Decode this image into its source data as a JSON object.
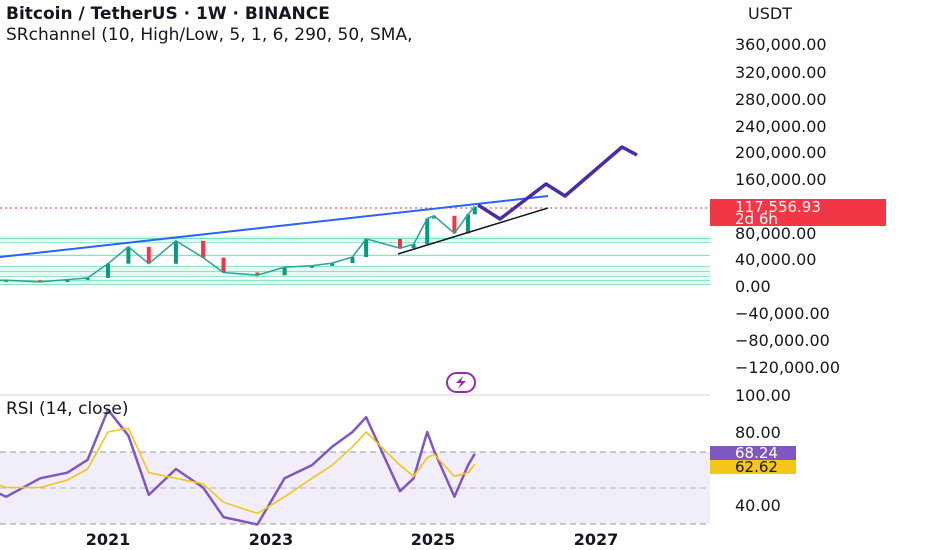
{
  "header": {
    "title": "Bitcoin / TetherUS · 1W · BINANCE",
    "indicator": "SRchannel (10, High/Low, 5, 1, 6, 290, 50, SMA,",
    "currency": "USDT"
  },
  "price_axis": {
    "ticks": [
      "360,000.00",
      "320,000.00",
      "280,000.00",
      "240,000.00",
      "200,000.00",
      "160,000.00",
      "80,000.00",
      "40,000.00",
      "0.00",
      "−40,000.00",
      "−80,000.00",
      "−120,000.00"
    ],
    "current_price": "117,556.93",
    "countdown": "2d 6h"
  },
  "rsi": {
    "label": "RSI (14, close)",
    "ticks": [
      "100.00",
      "80.00",
      "40.00"
    ],
    "value": "68.24",
    "ma_value": "62.62"
  },
  "time_axis": {
    "ticks": [
      "2021",
      "2023",
      "2025",
      "2027"
    ]
  },
  "colors": {
    "background": "#ffffff",
    "trendline": "#2962ff",
    "projection": "#4a2ca8",
    "price_tag": "#f23645",
    "rsi_line": "#7e57c2",
    "rsi_ma": "#f5c518",
    "rsi_fill": "#ede7f6",
    "channel": "#4dd9a0"
  },
  "chart_data": [
    {
      "type": "line",
      "title": "Bitcoin / TetherUS · 1W · BINANCE",
      "ylabel": "USDT",
      "x_range": [
        "2019-06",
        "2028-06"
      ],
      "ylim": [
        -145000,
        385000
      ],
      "series": [
        {
          "x": [
            "2019-06",
            "2019-10",
            "2020-03",
            "2020-07",
            "2020-10",
            "2021-01",
            "2021-04",
            "2021-07",
            "2021-11",
            "2022-03",
            "2022-06",
            "2022-11",
            "2023-03",
            "2023-07",
            "2023-10",
            "2024-01",
            "2024-03",
            "2024-08",
            "2024-10",
            "2024-12",
            "2025-01",
            "2025-04",
            "2025-06",
            "2025-07"
          ],
          "values": [
            9000,
            8500,
            6000,
            9500,
            12000,
            33000,
            58000,
            33000,
            67000,
            42000,
            20000,
            16000,
            28000,
            30000,
            34000,
            43000,
            70000,
            56000,
            62000,
            100000,
            104000,
            78000,
            106000,
            117556.93
          ]
        }
      ],
      "price_levels": [
        117556.93
      ],
      "sr_channels": [
        [
          62000,
          72000
        ],
        [
          42000,
          44000
        ],
        [
          20000,
          30000
        ],
        [
          5000,
          16000
        ]
      ]
    },
    {
      "type": "line",
      "title": "RSI (14, close)",
      "x_range": [
        "2019-06",
        "2028-06"
      ],
      "ylim": [
        30,
        100
      ],
      "series": [
        {
          "x": [
            "2019-06",
            "2019-10",
            "2020-03",
            "2020-07",
            "2020-10",
            "2021-01",
            "2021-04",
            "2021-07",
            "2021-11",
            "2022-03",
            "2022-06",
            "2022-11",
            "2023-03",
            "2023-07",
            "2023-10",
            "2024-01",
            "2024-03",
            "2024-08",
            "2024-10",
            "2024-12",
            "2025-01",
            "2025-04",
            "2025-06",
            "2025-07"
          ],
          "values": [
            52,
            45,
            55,
            58,
            65,
            92,
            78,
            46,
            60,
            50,
            34,
            30,
            55,
            62,
            72,
            80,
            88,
            48,
            55,
            80,
            70,
            45,
            62,
            68.24
          ]
        },
        {
          "x": [
            "2019-06",
            "2019-10",
            "2020-03",
            "2020-07",
            "2020-10",
            "2021-01",
            "2021-04",
            "2021-07",
            "2021-11",
            "2022-03",
            "2022-06",
            "2022-11",
            "2023-03",
            "2023-07",
            "2023-10",
            "2024-01",
            "2024-03",
            "2024-08",
            "2024-10",
            "2024-12",
            "2025-01",
            "2025-04",
            "2025-06",
            "2025-07"
          ],
          "values": [
            55,
            50,
            50,
            54,
            60,
            80,
            82,
            58,
            55,
            52,
            42,
            36,
            45,
            55,
            62,
            72,
            80,
            62,
            56,
            66,
            68,
            56,
            58,
            62.62
          ]
        }
      ]
    }
  ]
}
